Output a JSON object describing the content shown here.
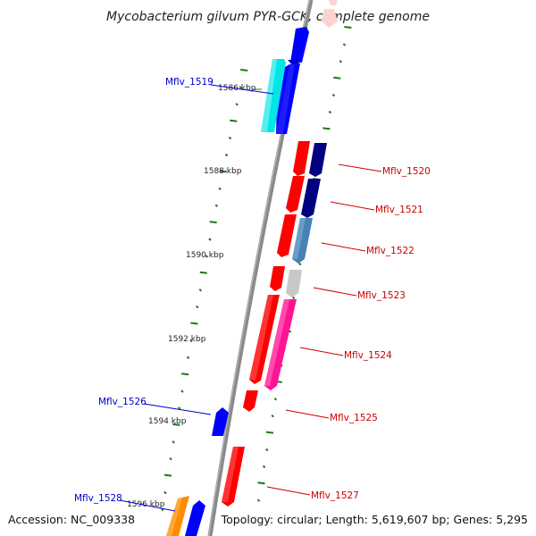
{
  "title": "Mycobacterium gilvum PYR-GCK, complete genome",
  "accession": "Accession: NC_009338",
  "topology": "Topology: circular; Length: 5,619,607 bp; Genes: 5,295",
  "colors": {
    "backbone": "#8a8a8a",
    "tick": "#1a7a1a",
    "forward_label": "#0000cc",
    "reverse_label": "#cc0000"
  },
  "scale_ticks": [
    {
      "label": "1586 kbp",
      "pos_kbp": 1586
    },
    {
      "label": "1588 kbp",
      "pos_kbp": 1588
    },
    {
      "label": "1590 kbp",
      "pos_kbp": 1590
    },
    {
      "label": "1592 kbp",
      "pos_kbp": 1592
    },
    {
      "label": "1594 kbp",
      "pos_kbp": 1594
    },
    {
      "label": "1596 kbp",
      "pos_kbp": 1596
    }
  ],
  "genes": [
    {
      "id": "Mflv_1519",
      "label": "Mflv_1519",
      "strand": "forward",
      "color": "#00e5e5"
    },
    {
      "id": "Mflv_1520",
      "label": "Mflv_1520",
      "strand": "reverse",
      "color": "#000080"
    },
    {
      "id": "Mflv_1521",
      "label": "Mflv_1521",
      "strand": "reverse",
      "color": "#000080"
    },
    {
      "id": "Mflv_1522",
      "label": "Mflv_1522",
      "strand": "reverse",
      "color": "#4682b4"
    },
    {
      "id": "Mflv_1523",
      "label": "Mflv_1523",
      "strand": "reverse",
      "color": "#c8c8c8"
    },
    {
      "id": "Mflv_1524",
      "label": "Mflv_1524",
      "strand": "reverse",
      "color": "#ff1493"
    },
    {
      "id": "Mflv_1525",
      "label": "Mflv_1525",
      "strand": "reverse",
      "color": "#ff0000"
    },
    {
      "id": "Mflv_1526",
      "label": "Mflv_1526",
      "strand": "forward",
      "color": "#0000ff"
    },
    {
      "id": "Mflv_1527",
      "label": "Mflv_1527",
      "strand": "reverse",
      "color": "#ff0000"
    },
    {
      "id": "Mflv_1528",
      "label": "Mflv_1528",
      "strand": "forward",
      "color": "#ff8c00"
    }
  ]
}
